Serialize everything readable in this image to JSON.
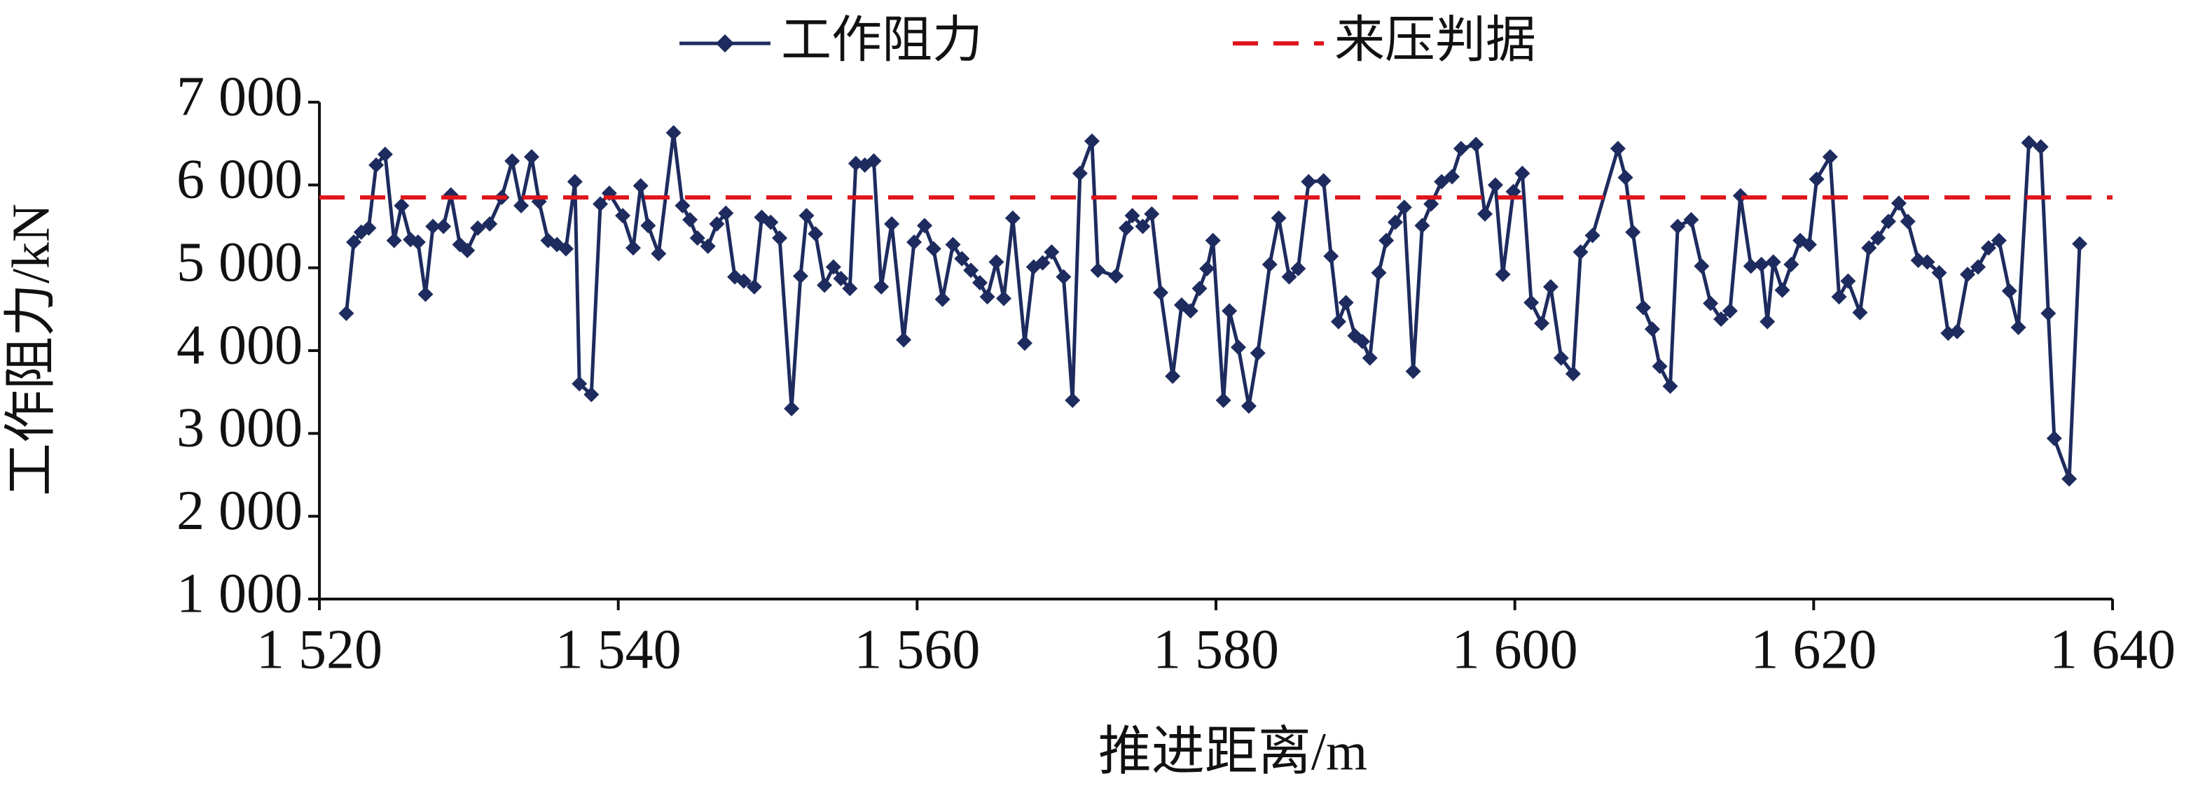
{
  "chart_data": {
    "type": "line",
    "xlabel": "推进距离/m",
    "ylabel": "工作阻力/kN",
    "xlim": [
      1520,
      1640
    ],
    "xticks": [
      {
        "value": 1520,
        "label": "1 520"
      },
      {
        "value": 1540,
        "label": "1 540"
      },
      {
        "value": 1560,
        "label": "1 560"
      },
      {
        "value": 1580,
        "label": "1 580"
      },
      {
        "value": 1600,
        "label": "1 600"
      },
      {
        "value": 1620,
        "label": "1 620"
      },
      {
        "value": 1640,
        "label": "1 640"
      }
    ],
    "ylim": [
      1000,
      7000
    ],
    "yticks": [
      {
        "value": 1000,
        "label": "1 000"
      },
      {
        "value": 2000,
        "label": "2 000"
      },
      {
        "value": 3000,
        "label": "3 000"
      },
      {
        "value": 4000,
        "label": "4 000"
      },
      {
        "value": 5000,
        "label": "5 000"
      },
      {
        "value": 6000,
        "label": "6 000"
      },
      {
        "value": 7000,
        "label": "7 000"
      }
    ],
    "legend_position": "top",
    "x": [
      1521.8,
      1522.3,
      1522.8,
      1523.3,
      1523.8,
      1524.4,
      1525.0,
      1525.5,
      1526.1,
      1526.6,
      1527.1,
      1527.6,
      1528.3,
      1528.8,
      1529.4,
      1529.9,
      1530.6,
      1531.4,
      1532.2,
      1532.9,
      1533.5,
      1534.2,
      1534.7,
      1535.3,
      1535.9,
      1536.5,
      1537.1,
      1537.4,
      1538.2,
      1538.8,
      1539.4,
      1540.3,
      1541.0,
      1541.5,
      1542.0,
      1542.7,
      1543.7,
      1544.3,
      1544.8,
      1545.3,
      1546.0,
      1546.6,
      1547.2,
      1547.8,
      1548.4,
      1549.1,
      1549.6,
      1550.2,
      1550.8,
      1551.6,
      1552.2,
      1552.6,
      1553.2,
      1553.8,
      1554.4,
      1554.9,
      1555.5,
      1555.9,
      1556.5,
      1557.1,
      1557.6,
      1558.3,
      1559.1,
      1559.8,
      1560.5,
      1561.1,
      1561.7,
      1562.4,
      1563.0,
      1563.6,
      1564.2,
      1564.7,
      1565.3,
      1565.8,
      1566.4,
      1567.2,
      1567.8,
      1568.4,
      1569.0,
      1569.8,
      1570.4,
      1570.9,
      1571.7,
      1572.1,
      1573.3,
      1574.0,
      1574.4,
      1575.1,
      1575.7,
      1576.3,
      1577.1,
      1577.7,
      1578.3,
      1578.9,
      1579.4,
      1579.8,
      1580.5,
      1580.9,
      1581.5,
      1582.2,
      1582.8,
      1583.6,
      1584.2,
      1584.9,
      1585.5,
      1586.2,
      1587.2,
      1587.7,
      1588.2,
      1588.7,
      1589.3,
      1589.8,
      1590.3,
      1590.9,
      1591.4,
      1592.0,
      1592.6,
      1593.2,
      1593.8,
      1594.4,
      1595.1,
      1595.8,
      1596.4,
      1597.4,
      1598.0,
      1598.7,
      1599.2,
      1599.9,
      1600.5,
      1601.1,
      1601.8,
      1602.4,
      1603.1,
      1603.9,
      1604.4,
      1605.2,
      1606.9,
      1607.4,
      1607.9,
      1608.6,
      1609.2,
      1609.7,
      1610.4,
      1610.9,
      1611.8,
      1612.5,
      1613.1,
      1613.8,
      1614.4,
      1615.1,
      1615.8,
      1616.5,
      1616.9,
      1617.3,
      1617.9,
      1618.5,
      1619.1,
      1619.7,
      1620.2,
      1621.1,
      1621.7,
      1622.3,
      1623.1,
      1623.7,
      1624.3,
      1625.0,
      1625.7,
      1626.3,
      1627.0,
      1627.6,
      1628.4,
      1629.0,
      1629.6,
      1630.3,
      1631.0,
      1631.7,
      1632.4,
      1633.1,
      1633.7,
      1634.4,
      1635.2,
      1635.7,
      1636.1,
      1637.1,
      1637.8
    ],
    "series": [
      {
        "name": "工作阻力",
        "color": "#1e2b5e",
        "values": [
          4450,
          5310,
          5430,
          5480,
          6240,
          6370,
          5330,
          5750,
          5340,
          5310,
          4680,
          5500,
          5500,
          5880,
          5280,
          5210,
          5480,
          5530,
          5850,
          6290,
          5750,
          6340,
          5800,
          5330,
          5280,
          5230,
          6040,
          3600,
          3470,
          5770,
          5900,
          5630,
          5240,
          5990,
          5510,
          5170,
          6630,
          5750,
          5580,
          5360,
          5260,
          5530,
          5660,
          4890,
          4840,
          4770,
          5610,
          5550,
          5360,
          3300,
          4900,
          5630,
          5410,
          4790,
          5010,
          4870,
          4750,
          6260,
          6240,
          6290,
          4770,
          5530,
          4130,
          5310,
          5510,
          5230,
          4620,
          5280,
          5110,
          4970,
          4820,
          4650,
          5070,
          4630,
          5600,
          4090,
          5010,
          5060,
          5190,
          4890,
          3400,
          6140,
          6530,
          4970,
          4900,
          5480,
          5630,
          5500,
          5650,
          4700,
          3690,
          4550,
          4480,
          4750,
          4990,
          5330,
          3400,
          4480,
          4040,
          3330,
          3970,
          5040,
          5600,
          4890,
          4990,
          6040,
          6050,
          5140,
          4350,
          4580,
          4180,
          4110,
          3910,
          4940,
          5330,
          5550,
          5730,
          3750,
          5510,
          5770,
          6040,
          6100,
          6440,
          6490,
          5650,
          6000,
          4920,
          5920,
          6140,
          4580,
          4330,
          4770,
          3910,
          3720,
          5190,
          5390,
          6440,
          6090,
          5430,
          4520,
          4260,
          3810,
          3570,
          5500,
          5580,
          5020,
          4570,
          4380,
          4480,
          5870,
          5020,
          5040,
          4350,
          5070,
          4730,
          5040,
          5330,
          5280,
          6070,
          6340,
          4650,
          4840,
          4460,
          5240,
          5360,
          5560,
          5780,
          5560,
          5090,
          5070,
          4940,
          4210,
          4230,
          4920,
          5010,
          5240,
          5330,
          4720,
          4280,
          6510,
          6460,
          4450,
          2940,
          2450,
          5290
        ]
      },
      {
        "name": "来压判据",
        "color": "#e0151b",
        "reference": 5850
      }
    ]
  }
}
